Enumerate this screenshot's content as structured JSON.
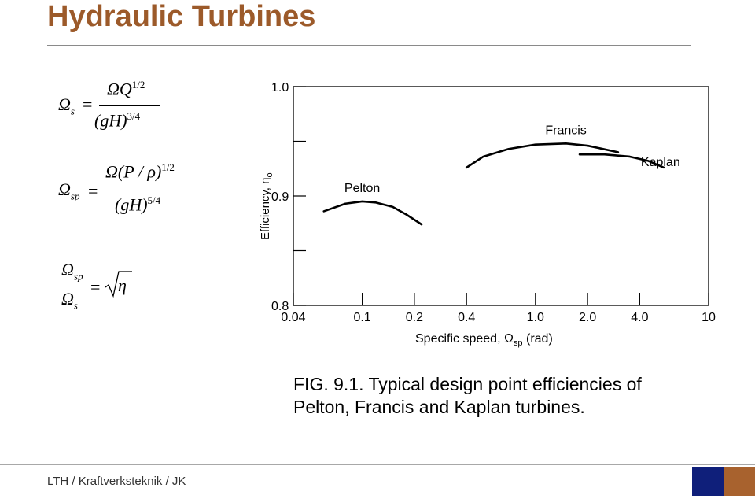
{
  "page": {
    "title": "Hydraulic Turbines",
    "caption_line1": "FIG. 9.1. Typical design point efficiencies of",
    "caption_line2": "Pelton, Francis and Kaplan turbines.",
    "footer": "LTH / Kraftverksteknik / JK",
    "colors": {
      "title": "#9c5a2a",
      "footer_dark": "#0f1f7a",
      "footer_accent": "#a8622e"
    }
  },
  "formulas": {
    "f1": {
      "lhs": "Ω",
      "lhs_sub": "s",
      "num": "ΩQ",
      "num_sup": "1/2",
      "den": "(gH)",
      "den_sup": "3/4"
    },
    "f2": {
      "lhs": "Ω",
      "lhs_sub": "sp",
      "num": "Ω(P / ρ)",
      "num_sup": "1/2",
      "den": "(gH)",
      "den_sup": "5/4"
    },
    "f3": {
      "num": "Ω",
      "num_sub": "sp",
      "den": "Ω",
      "den_sub": "s",
      "rhs": "η"
    }
  },
  "chart_data": {
    "type": "line",
    "xscale": "log",
    "x_ticks": [
      0.04,
      0.1,
      0.2,
      0.4,
      1.0,
      2.0,
      4.0,
      10
    ],
    "x_tick_labels": [
      "0.04",
      "0.1",
      "0.2",
      "0.4",
      "1.0",
      "2.0",
      "4.0",
      "10"
    ],
    "y_ticks": [
      0.8,
      0.85,
      0.9,
      0.95,
      1.0
    ],
    "y_tick_labels": [
      "0.8",
      "",
      "0.9",
      "",
      "1.0"
    ],
    "xlim": [
      0.04,
      10
    ],
    "ylim": [
      0.8,
      1.0
    ],
    "xlabel": "Specific speed, Ω",
    "xlabel_sub": "sp",
    "xlabel_unit": " (rad)",
    "ylabel": "Efficiency, η",
    "ylabel_sub": "o",
    "series": [
      {
        "name": "Pelton",
        "x": [
          0.06,
          0.08,
          0.1,
          0.12,
          0.15,
          0.18,
          0.22
        ],
        "y": [
          0.886,
          0.893,
          0.895,
          0.894,
          0.89,
          0.883,
          0.874
        ]
      },
      {
        "name": "Francis",
        "x": [
          0.4,
          0.5,
          0.7,
          1.0,
          1.5,
          2.0,
          3.0
        ],
        "y": [
          0.926,
          0.936,
          0.943,
          0.947,
          0.948,
          0.946,
          0.94
        ]
      },
      {
        "name": "Kaplan",
        "x": [
          1.8,
          2.5,
          3.5,
          4.5,
          5.5
        ],
        "y": [
          0.938,
          0.938,
          0.936,
          0.932,
          0.926
        ]
      }
    ]
  }
}
